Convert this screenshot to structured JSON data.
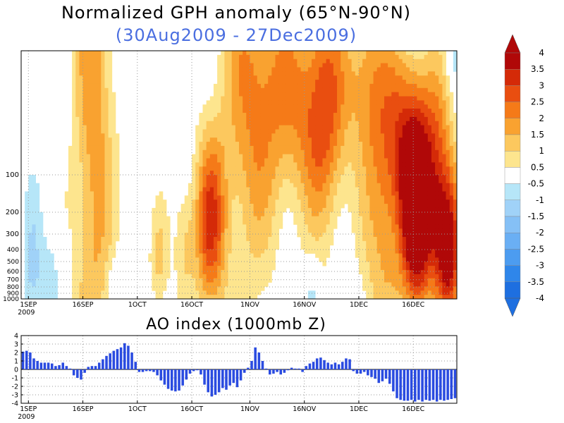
{
  "titles": {
    "main": "Normalized GPH anomaly (65°N-90°N)",
    "sub": "(30Aug2009 - 27Dec2009)",
    "ao": "AO index (1000mb Z)"
  },
  "colors": {
    "subtitle": "#4a6ee0",
    "bars": "#2a4be0",
    "contour": "#000000"
  },
  "x_ticks": [
    {
      "label": "1SEP",
      "sub": "2009",
      "day": 2
    },
    {
      "label": "16SEP",
      "sub": "",
      "day": 17
    },
    {
      "label": "1OCT",
      "sub": "",
      "day": 32
    },
    {
      "label": "16OCT",
      "sub": "",
      "day": 47
    },
    {
      "label": "1NOV",
      "sub": "",
      "day": 63
    },
    {
      "label": "16NOV",
      "sub": "",
      "day": 78
    },
    {
      "label": "1DEC",
      "sub": "",
      "day": 93
    },
    {
      "label": "16DEC",
      "sub": "",
      "day": 108
    }
  ],
  "chart_data": [
    {
      "type": "heatmap",
      "title": "Normalized GPH anomaly (65°N-90°N)",
      "subtitle": "(30Aug2009 - 27Dec2009)",
      "x_range": [
        "30Aug2009",
        "27Dec2009"
      ],
      "y_pressure_labels": [
        100,
        200,
        300,
        400,
        500,
        600,
        700,
        800,
        900,
        1000
      ],
      "grid": true,
      "legend": "right",
      "colorbar": {
        "levels": [
          -4,
          -3.5,
          -3,
          -2.5,
          -2,
          -1.5,
          -1,
          -0.5,
          0.5,
          1,
          1.5,
          2,
          2.5,
          3,
          3.5,
          4
        ],
        "colors": [
          "#1e6fe0",
          "#2f86ea",
          "#4c9cf0",
          "#6aaff4",
          "#85c0f6",
          "#a0d2f8",
          "#b6e6f8",
          "#ffffff",
          "#fde58e",
          "#fcc85e",
          "#f9a230",
          "#f57a18",
          "#e94e10",
          "#d42a08",
          "#b00808"
        ],
        "labels": [
          "4",
          "3.5",
          "3",
          "2.5",
          "2",
          "1.5",
          "1",
          "0.5",
          "-0.5",
          "-1",
          "-1.5",
          "-2",
          "-2.5",
          "-3",
          "-3.5",
          "-4"
        ]
      }
    },
    {
      "type": "bar",
      "title": "AO index (1000mb Z)",
      "ylim": [
        -4,
        4
      ],
      "yticks": [
        "4",
        "3",
        "2",
        "1",
        "0",
        "-1",
        "-2",
        "-3",
        "-4"
      ],
      "grid": true,
      "values": [
        2.1,
        2.2,
        2.0,
        1.3,
        1.0,
        0.8,
        0.8,
        0.8,
        0.7,
        0.4,
        0.5,
        0.8,
        0.4,
        0.1,
        -0.7,
        -1.0,
        -1.2,
        -0.4,
        0.3,
        0.4,
        0.4,
        0.8,
        1.2,
        1.6,
        1.9,
        2.2,
        2.4,
        2.6,
        3.1,
        2.8,
        2.0,
        0.9,
        -0.3,
        -0.3,
        -0.2,
        -0.2,
        -0.3,
        -0.7,
        -1.3,
        -1.8,
        -2.3,
        -2.5,
        -2.6,
        -2.5,
        -1.9,
        -1.2,
        -0.5,
        -0.2,
        -0.1,
        -0.6,
        -1.8,
        -2.7,
        -3.2,
        -3.0,
        -2.7,
        -2.2,
        -2.4,
        -1.9,
        -1.6,
        -2.1,
        -1.3,
        -0.4,
        0.2,
        1.0,
        2.6,
        2.0,
        1.0,
        0.1,
        -0.6,
        -0.5,
        -0.3,
        -0.6,
        -0.4,
        -0.1,
        0.2,
        0.1,
        0.1,
        -0.3,
        0.4,
        0.7,
        0.9,
        1.3,
        1.4,
        1.1,
        0.8,
        0.6,
        0.8,
        0.6,
        0.9,
        1.3,
        1.2,
        -0.2,
        -0.5,
        -0.5,
        -0.3,
        -0.7,
        -0.9,
        -1.1,
        -1.6,
        -1.4,
        -1.1,
        -1.7,
        -2.6,
        -3.4,
        -3.6,
        -3.7,
        -3.7,
        -3.6,
        -3.8,
        -3.6,
        -3.8,
        -3.6,
        -3.7,
        -3.6,
        -3.8,
        -3.6,
        -3.7,
        -3.6,
        -3.5,
        -3.4
      ]
    }
  ]
}
